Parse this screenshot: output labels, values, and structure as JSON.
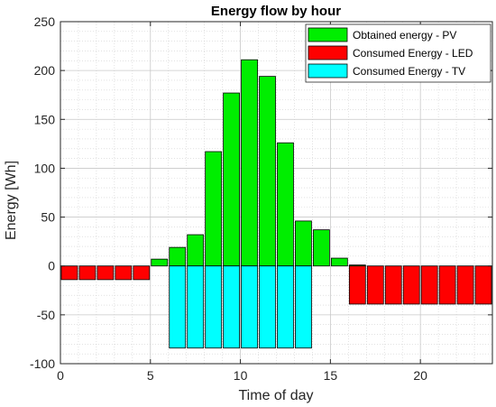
{
  "chart_data": {
    "type": "bar",
    "title": "Energy flow by hour",
    "xlabel": "Time of day",
    "ylabel": "Energy [Wh]",
    "xlim": [
      0,
      24
    ],
    "ylim": [
      -100,
      250
    ],
    "xticks": [
      0,
      5,
      10,
      15,
      20
    ],
    "yticks": [
      -100,
      -50,
      0,
      50,
      100,
      150,
      200,
      250
    ],
    "grid": true,
    "legend_position": "top-right",
    "bar_width": 0.9,
    "x": [
      0.5,
      1.5,
      2.5,
      3.5,
      4.5,
      5.5,
      6.5,
      7.5,
      8.5,
      9.5,
      10.5,
      11.5,
      12.5,
      13.5,
      14.5,
      15.5,
      16.5,
      17.5,
      18.5,
      19.5,
      20.5,
      21.5,
      22.5,
      23.5
    ],
    "series": [
      {
        "name": "Obtained energy - PV",
        "color": "#00ee00",
        "values": [
          0,
          0,
          0,
          0,
          0,
          7,
          19,
          32,
          117,
          177,
          211,
          194,
          126,
          46,
          37,
          8,
          1,
          0,
          0,
          0,
          0,
          0,
          0,
          0
        ]
      },
      {
        "name": "Consumed Energy - LED",
        "color": "#ff0000",
        "values": [
          -14,
          -14,
          -14,
          -14,
          -14,
          0,
          0,
          0,
          0,
          0,
          0,
          0,
          0,
          0,
          0,
          0,
          -39,
          -39,
          -39,
          -39,
          -39,
          -39,
          -39,
          -39
        ]
      },
      {
        "name": "Consumed Energy - TV",
        "color": "#00ffff",
        "values": [
          0,
          0,
          0,
          0,
          0,
          0,
          -84,
          -84,
          -84,
          -84,
          -84,
          -84,
          -84,
          -84,
          0,
          0,
          0,
          0,
          0,
          0,
          0,
          0,
          0,
          0
        ]
      }
    ]
  }
}
